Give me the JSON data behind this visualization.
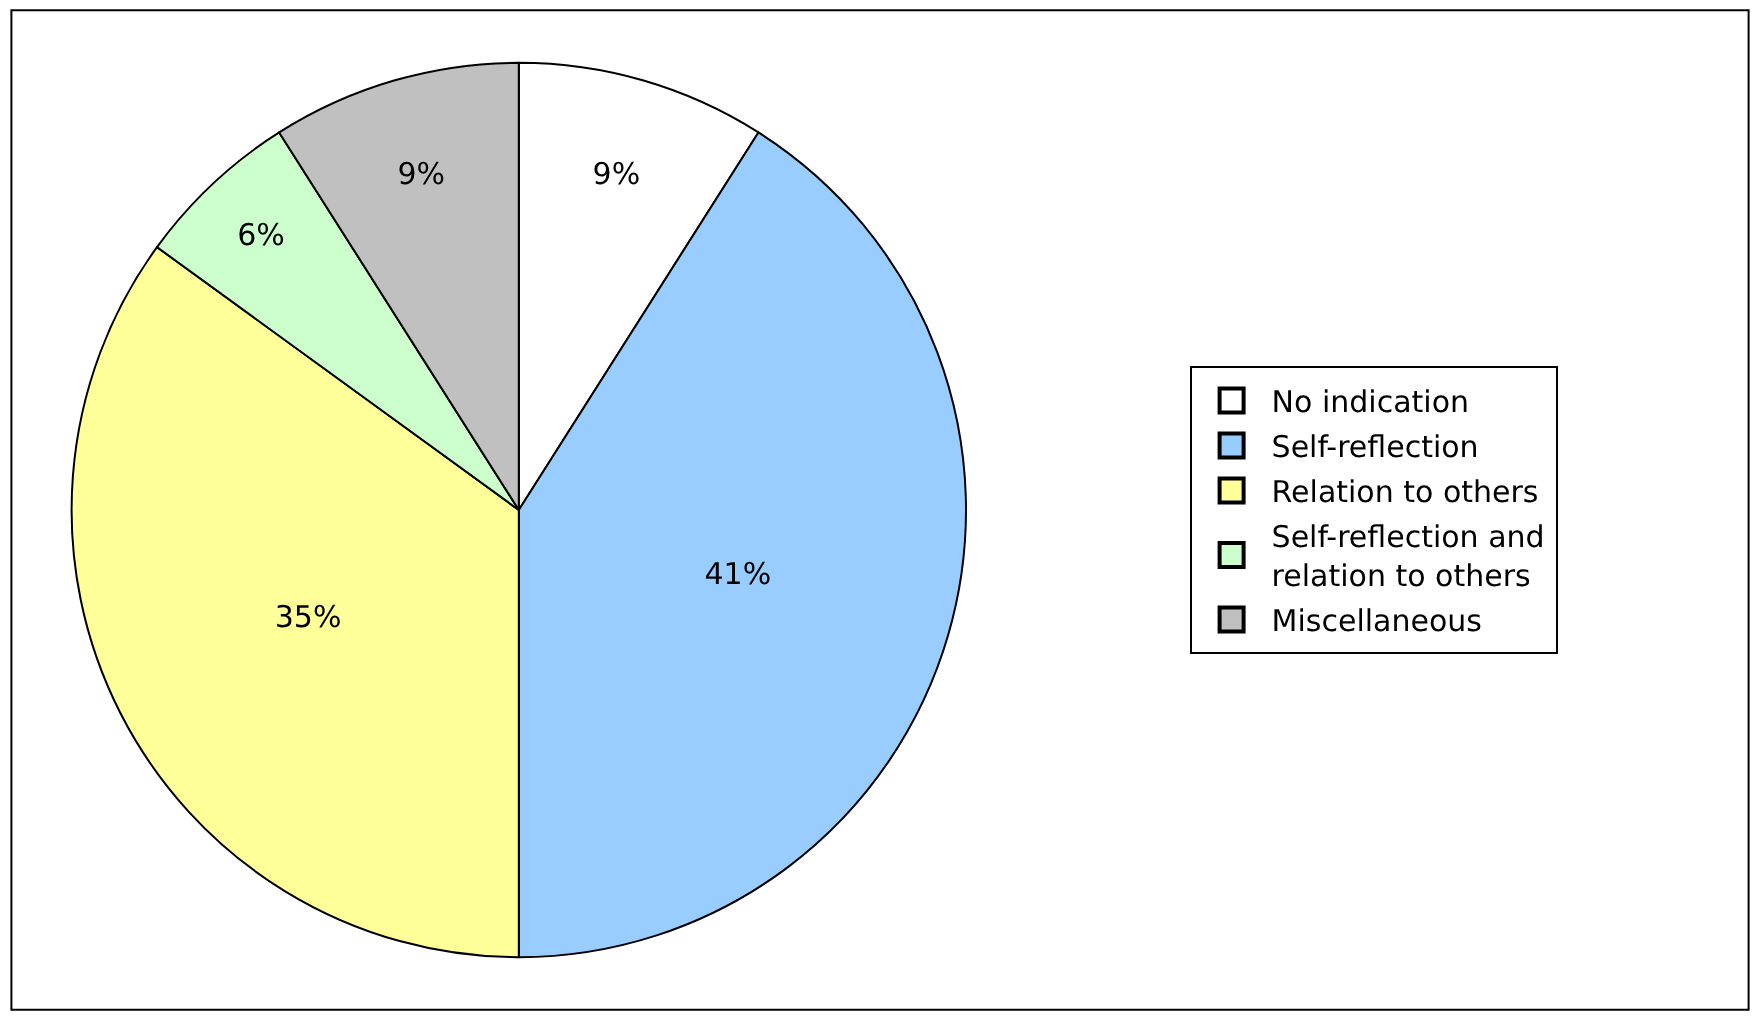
{
  "chart_data": {
    "type": "pie",
    "categories": [
      "No indication",
      "Self-reflection",
      "Relation to others",
      "Self-reflection and relation to others",
      "Miscellaneous"
    ],
    "values": [
      9,
      41,
      35,
      6,
      9
    ],
    "colors": [
      "#ffffff",
      "#99ccff",
      "#ffff99",
      "#ccffcc",
      "#c0c0c0"
    ],
    "value_labels": [
      "9%",
      "41%",
      "35%",
      "6%",
      "9%"
    ],
    "legend": "right"
  }
}
